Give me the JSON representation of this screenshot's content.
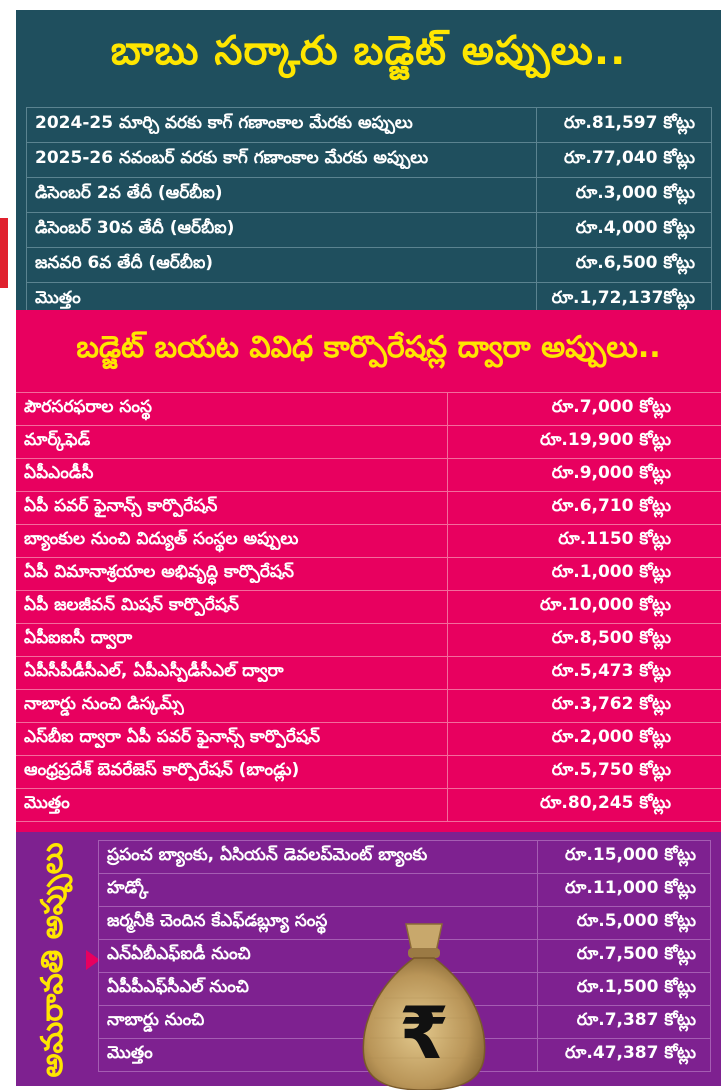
{
  "section1": {
    "title": "బాబు సర్కారు బడ్జెట్ అప్పులు..",
    "rows": [
      {
        "label": "2024-25 మార్చి వరకు కాగ్ గణాంకాల మేరకు అప్పులు",
        "amount": "రూ.81,597 కోట్లు"
      },
      {
        "label": "2025-26 నవంబర్ వరకు కాగ్ గణాంకాల మేరకు అప్పులు",
        "amount": "రూ.77,040 కోట్లు"
      },
      {
        "label": "డిసెంబర్ 2వ తేదీ (ఆర్‌బీఐ)",
        "amount": "రూ.3,000 కోట్లు"
      },
      {
        "label": "డిసెంబర్ 30వ తేదీ (ఆర్‌బీఐ)",
        "amount": "రూ.4,000 కోట్లు"
      },
      {
        "label": "జనవరి 6వ తేదీ (ఆర్‌బీఐ)",
        "amount": "రూ.6,500 కోట్లు"
      },
      {
        "label": "మొత్తం",
        "amount": "రూ.1,72,137కోట్లు"
      }
    ]
  },
  "section2": {
    "title": "బడ్జెట్ బయట వివిధ కార్పొరేషన్ల ద్వారా అప్పులు..",
    "rows": [
      {
        "label": "పౌరసరఫరాల సంస్థ",
        "amount": "రూ.7,000 కోట్లు"
      },
      {
        "label": "మార్క్‌ఫెడ్",
        "amount": "రూ.19,900 కోట్లు"
      },
      {
        "label": "ఏపీఎండీసీ",
        "amount": "రూ.9,000 కోట్లు"
      },
      {
        "label": "ఏపీ పవర్ ఫైనాన్స్ కార్పొరేషన్",
        "amount": "రూ.6,710 కోట్లు"
      },
      {
        "label": "బ్యాంకుల నుంచి విద్యుత్ సంస్థల అప్పులు",
        "amount": "రూ.1150 కోట్లు"
      },
      {
        "label": "ఏపీ విమానాశ్రయాల అభివృద్ధి కార్పొరేషన్",
        "amount": "రూ.1,000 కోట్లు"
      },
      {
        "label": "ఏపీ జలజీవన్ మిషన్ కార్పొరేషన్",
        "amount": "రూ.10,000 కోట్లు"
      },
      {
        "label": "ఏపీఐఐసీ ద్వారా",
        "amount": "రూ.8,500 కోట్లు"
      },
      {
        "label": "ఏపీసీపీడీసీఎల్, ఏపీఎస్పీడీసీఎల్ ద్వారా",
        "amount": "రూ.5,473 కోట్లు"
      },
      {
        "label": "నాబార్డు నుంచి డిస్కమ్స్",
        "amount": "రూ.3,762 కోట్లు"
      },
      {
        "label": "ఎస్‌బీఐ ద్వారా ఏపీ పవర్ ఫైనాన్స్ కార్పొరేషన్",
        "amount": "రూ.2,000 కోట్లు"
      },
      {
        "label": "ఆంధ్రప్రదేశ్ బెవరేజెస్ కార్పొరేషన్ (బాండ్లు)",
        "amount": "రూ.5,750 కోట్లు"
      },
      {
        "label": "మొత్తం",
        "amount": "రూ.80,245 కోట్లు"
      }
    ]
  },
  "section3": {
    "side_label": "అమరావతి అప్పులు",
    "rows": [
      {
        "label": "ప్రపంచ బ్యాంకు, ఏసియన్ డెవలప్‌మెంట్ బ్యాంకు",
        "amount": "రూ.15,000 కోట్లు"
      },
      {
        "label": "హడ్కో",
        "amount": "రూ.11,000 కోట్లు"
      },
      {
        "label": "జర్మనీకి చెందిన కేఎఫ్‌డబ్ల్యూ సంస్థ",
        "amount": "రూ.5,000 కోట్లు"
      },
      {
        "label": "ఎన్ఏబీఎఫ్ఐడీ నుంచి",
        "amount": "రూ.7,500 కోట్లు"
      },
      {
        "label": "ఏపీపీఎఫ్‌సీఎల్ నుంచి",
        "amount": "రూ.1,500 కోట్లు"
      },
      {
        "label": "నాబార్డు నుంచి",
        "amount": "రూ.7,387 కోట్లు"
      },
      {
        "label": "మొత్తం",
        "amount": "రూ.47,387 కోట్లు"
      }
    ]
  },
  "icons": {
    "money_bag": "rupee-money-bag-icon"
  },
  "colors": {
    "section1_bg": "#1f4f5e",
    "section2_bg": "#e8005f",
    "section3_bg": "#7e2190",
    "title_yellow": "#ffe600"
  }
}
